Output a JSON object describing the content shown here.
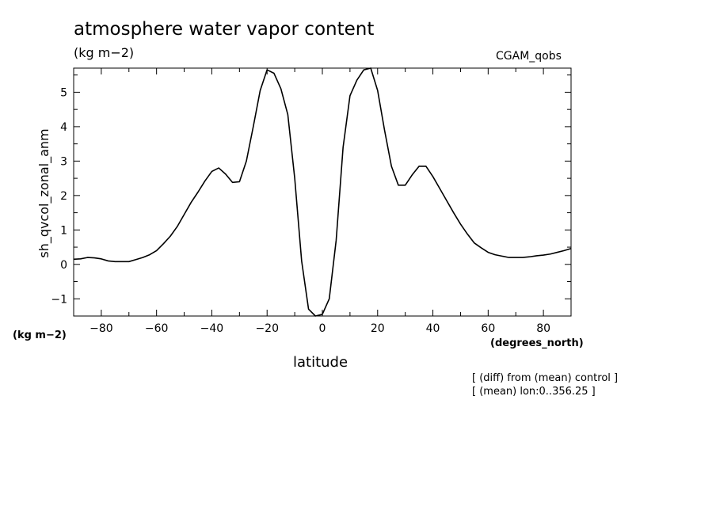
{
  "chart_data": {
    "type": "line",
    "title": "atmosphere water vapor content",
    "units": "(kg m−2)",
    "run_name": "CGAM_qobs",
    "ylabel": "sh_qvcol_zonal_anm",
    "y_units": "(kg m−2)",
    "xlabel": "latitude",
    "x_units": "(degrees_north)",
    "notes": [
      "[ (diff) from (mean) control ]",
      "[ (mean) lon:0..356.25 ]"
    ],
    "xlim": [
      -90,
      90
    ],
    "ylim": [
      -1.5,
      5.7
    ],
    "xticks": [
      -80,
      -60,
      -40,
      -20,
      0,
      20,
      40,
      60,
      80
    ],
    "xtick_labels": [
      "−80",
      "−60",
      "−40",
      "−20",
      "0",
      "20",
      "40",
      "60",
      "80"
    ],
    "yticks": [
      -1,
      0,
      1,
      2,
      3,
      4,
      5
    ],
    "ytick_labels": [
      "−1",
      "0",
      "1",
      "2",
      "3",
      "4",
      "5"
    ],
    "grid": false,
    "series": [
      {
        "x": [
          -90,
          -87.5,
          -85,
          -82.5,
          -80,
          -77.5,
          -75,
          -72.5,
          -70,
          -67.5,
          -65,
          -62.5,
          -60,
          -57.5,
          -55,
          -52.5,
          -50,
          -47.5,
          -45,
          -42.5,
          -40,
          -37.5,
          -35,
          -32.5,
          -30,
          -27.5,
          -25,
          -22.5,
          -20,
          -17.5,
          -15,
          -12.5,
          -10,
          -7.5,
          -5,
          -2.5,
          0,
          2.5,
          5,
          7.5,
          10,
          12.5,
          15,
          17.5,
          20,
          22.5,
          25,
          27.5,
          30,
          32.5,
          35,
          37.5,
          40,
          42.5,
          45,
          47.5,
          50,
          52.5,
          55,
          57.5,
          60,
          62.5,
          65,
          67.5,
          70,
          72.5,
          75,
          77.5,
          80,
          82.5,
          85,
          87.5,
          90
        ],
        "y": [
          0.15,
          0.16,
          0.2,
          0.19,
          0.16,
          0.1,
          0.08,
          0.08,
          0.08,
          0.14,
          0.2,
          0.28,
          0.4,
          0.6,
          0.82,
          1.1,
          1.45,
          1.8,
          2.1,
          2.42,
          2.7,
          2.8,
          2.62,
          2.38,
          2.4,
          3.0,
          4.0,
          5.05,
          5.65,
          5.55,
          5.1,
          4.35,
          2.5,
          0.1,
          -1.3,
          -1.5,
          -1.45,
          -1.0,
          0.7,
          3.4,
          4.9,
          5.35,
          5.65,
          5.75,
          5.05,
          3.9,
          2.85,
          2.3,
          2.3,
          2.6,
          2.85,
          2.85,
          2.55,
          2.2,
          1.85,
          1.5,
          1.17,
          0.88,
          0.62,
          0.48,
          0.35,
          0.28,
          0.24,
          0.2,
          0.2,
          0.2,
          0.22,
          0.25,
          0.27,
          0.3,
          0.35,
          0.4,
          0.46
        ]
      }
    ]
  }
}
